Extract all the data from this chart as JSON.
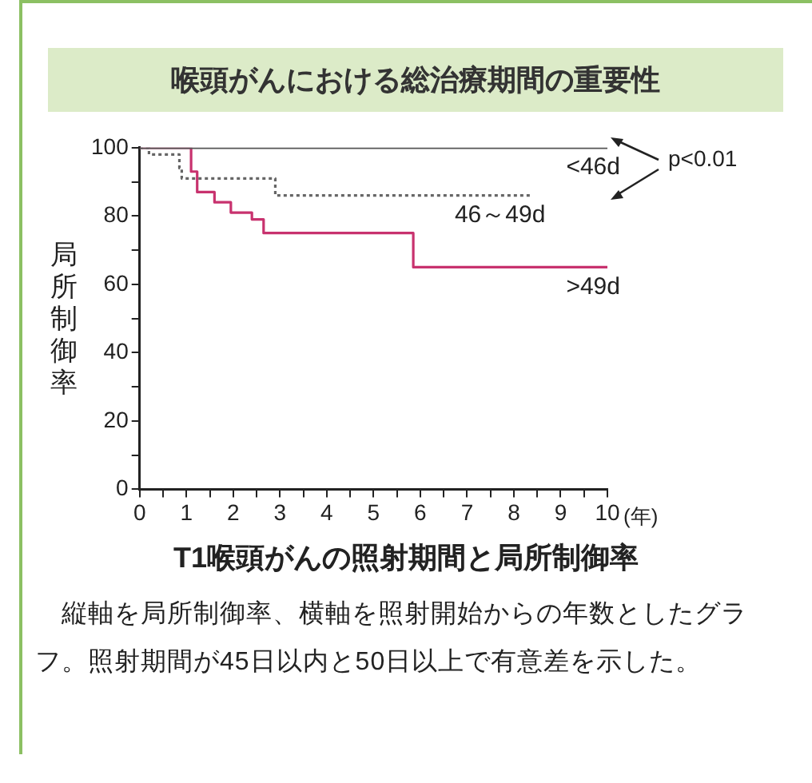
{
  "chart_data": {
    "type": "step",
    "title": "喉頭がんにおける総治療期間の重要性",
    "subtitle": "T1喉頭がんの照射期間と局所制御率",
    "xlabel": "(年)",
    "ylabel": "局所制御率",
    "annotations": [
      "p<0.01",
      "　縦軸を局所制御率、横軸を照射開始からの年数としたグラフ。照射期間が45日以内と50日以上で有意差を示した。"
    ],
    "xlim": [
      0,
      10
    ],
    "ylim": [
      0,
      100
    ],
    "xticks": [
      0,
      {
        "value": 0.5,
        "label": null
      },
      1,
      {
        "value": 1.5,
        "label": null
      },
      2,
      {
        "value": 2.5,
        "label": null
      },
      3,
      {
        "value": 3.5,
        "label": null
      },
      4,
      {
        "value": 4.5,
        "label": null
      },
      5,
      {
        "value": 5.5,
        "label": null
      },
      6,
      {
        "value": 6.5,
        "label": null
      },
      7,
      {
        "value": 7.5,
        "label": null
      },
      8,
      {
        "value": 8.5,
        "label": null
      },
      9,
      {
        "value": 9.5,
        "label": null
      },
      10
    ],
    "yticks": [
      0,
      {
        "value": 10,
        "label": null
      },
      20,
      {
        "value": 30,
        "label": null
      },
      40,
      {
        "value": 50,
        "label": null
      },
      60,
      {
        "value": 70,
        "label": null
      },
      80,
      {
        "value": 90,
        "label": null
      },
      100
    ],
    "grid": false,
    "legend": false,
    "marker": "none",
    "series": [
      {
        "name": "<46d",
        "color": "#555555",
        "line_style": "solid",
        "x": [
          0,
          10
        ],
        "values": [
          100,
          100
        ]
      },
      {
        "name": "46～49d",
        "color": "#666666",
        "line_style": "dotted",
        "x": [
          0,
          0.2,
          0.85,
          0.9,
          2.9,
          8.4
        ],
        "values": [
          100,
          98,
          94,
          91,
          86,
          86
        ]
      },
      {
        "name": ">49d",
        "color": "#c8326e",
        "line_style": "solid",
        "x": [
          0,
          1.1,
          1.23,
          1.6,
          1.95,
          2.4,
          2.65,
          5.85,
          10
        ],
        "values": [
          100,
          93,
          87,
          84,
          81,
          79,
          75,
          65,
          65
        ]
      }
    ]
  }
}
